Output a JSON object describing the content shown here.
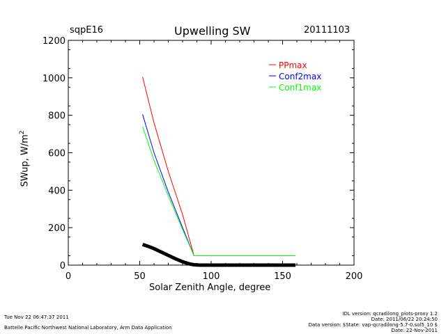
{
  "header": {
    "site": "sqpE16",
    "date": "20111103"
  },
  "footer": {
    "left_line1": "Tue Nov 22 06:47:37 2011",
    "left_line2": "Battelle Pacific Northwest National Laboratory, Arm Data Application",
    "right_line1": "IDL version: qcradilong_plots-proxy 1.2",
    "right_line2": "Date: 2011/06/22 20:24:50",
    "right_line3": "Data version: $State: vap-qcradilong-5.7-0.sol5_10 $",
    "right_line4": "Date: 22-Nov-2011"
  },
  "chart_data": {
    "type": "line",
    "title": "Upwelling SW",
    "xlabel": "Solar Zenith Angle, degree",
    "ylabel": "SWup, W/m",
    "ylabel_superscript": "2",
    "xlim": [
      0,
      200
    ],
    "ylim": [
      0,
      1200
    ],
    "xticks": [
      0,
      50,
      100,
      150,
      200
    ],
    "yticks": [
      0,
      200,
      400,
      600,
      800,
      1000,
      1200
    ],
    "grid": false,
    "legend_position": "top-right",
    "series": [
      {
        "name": "PPmax",
        "color": "#ff0000",
        "x": [
          52,
          60,
          70,
          80,
          88,
          100,
          120,
          140,
          159
        ],
        "y": [
          1005,
          760,
          500,
          270,
          50,
          50,
          50,
          50,
          50
        ]
      },
      {
        "name": "Conf2max",
        "color": "#0000ff",
        "x": [
          52,
          60,
          70,
          80,
          88,
          100,
          120,
          140,
          159
        ],
        "y": [
          805,
          600,
          390,
          200,
          50,
          50,
          50,
          50,
          50
        ]
      },
      {
        "name": "Conf1max",
        "color": "#00ff00",
        "x": [
          52,
          60,
          70,
          80,
          88,
          100,
          120,
          140,
          159
        ],
        "y": [
          740,
          560,
          370,
          190,
          50,
          50,
          50,
          50,
          50
        ]
      },
      {
        "name": "",
        "color": "#000000",
        "style": "thick",
        "x": [
          52,
          56,
          60,
          65,
          70,
          75,
          80,
          85,
          88,
          92,
          100,
          120,
          140,
          159
        ],
        "y": [
          110,
          100,
          88,
          70,
          52,
          34,
          18,
          6,
          2,
          0,
          0,
          0,
          0,
          0
        ]
      }
    ]
  }
}
